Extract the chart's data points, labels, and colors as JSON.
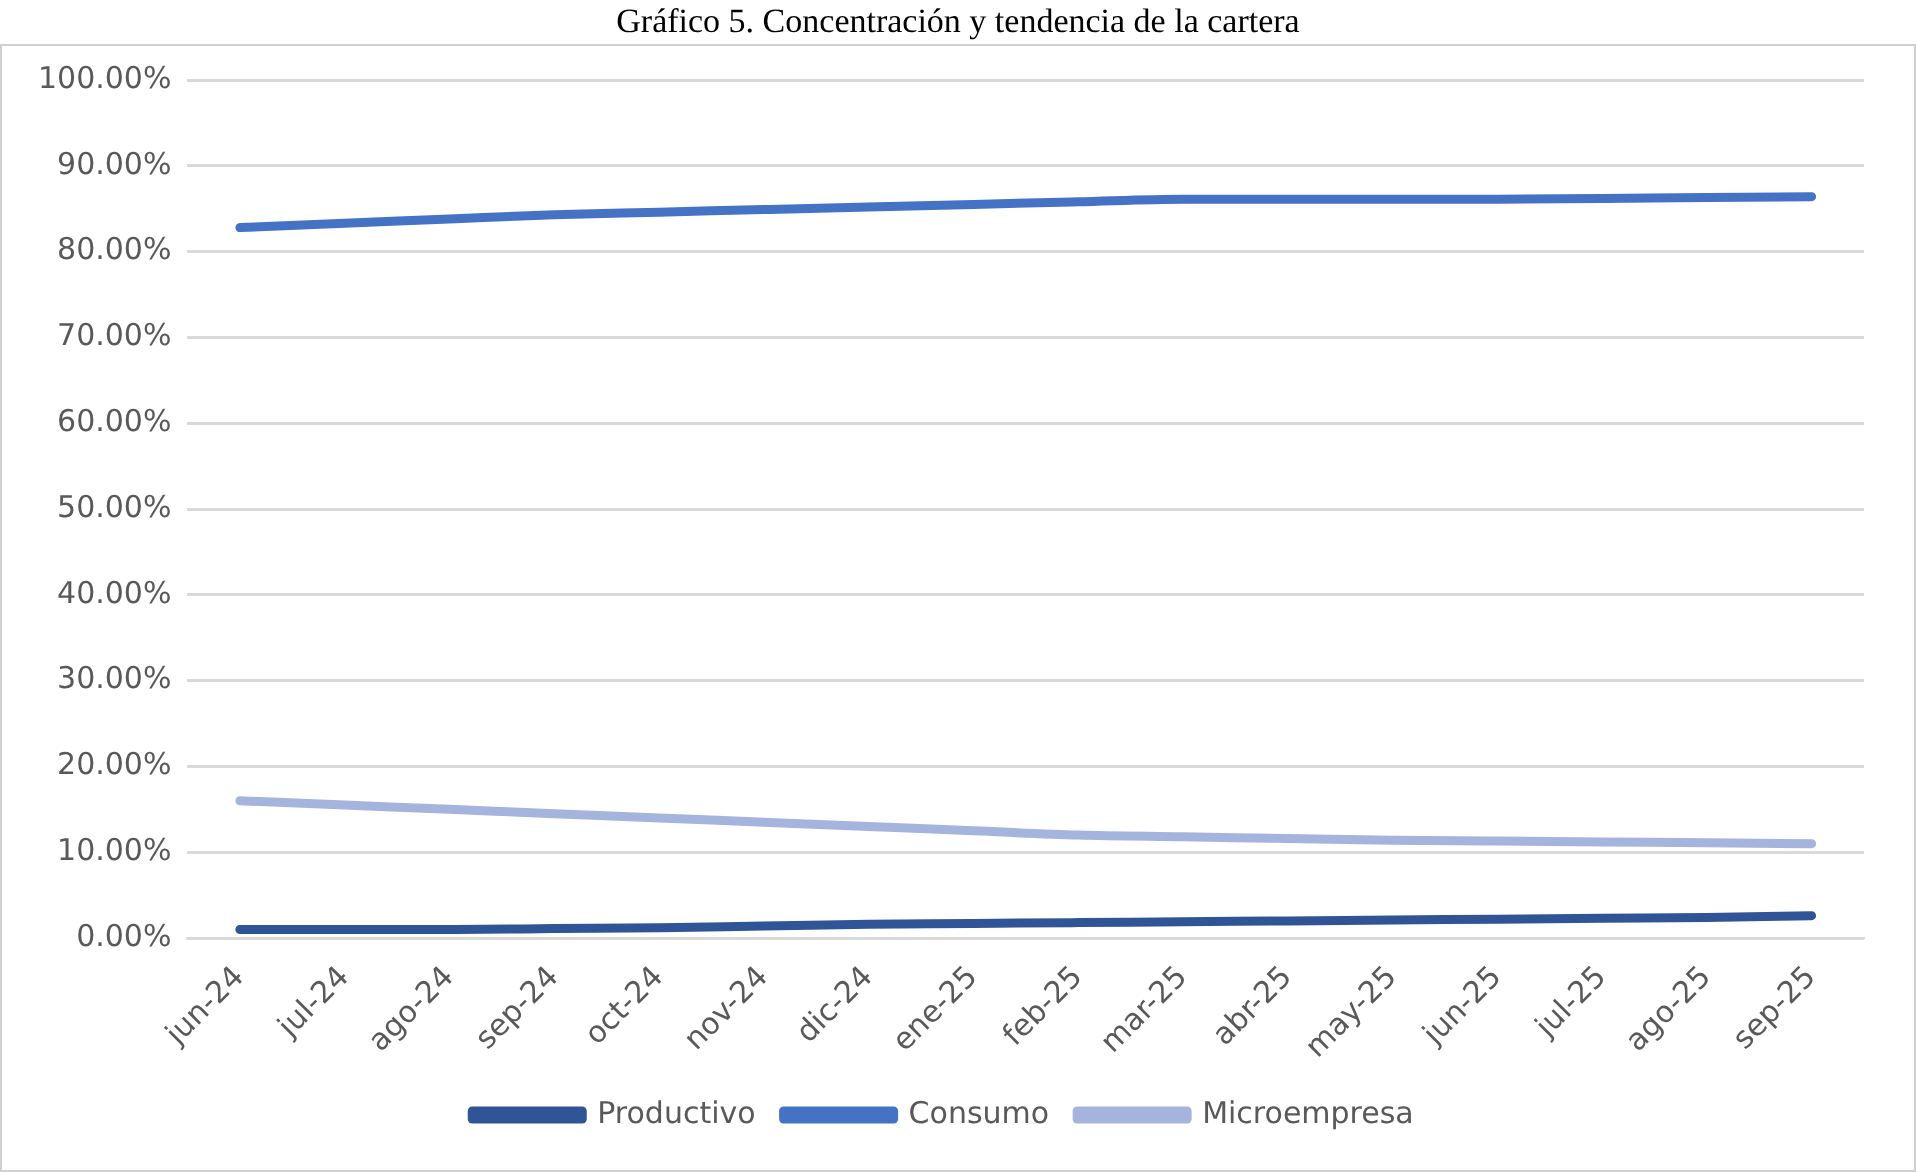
{
  "chart_data": {
    "type": "line",
    "title": "Gráfico 5. Concentración y tendencia de la cartera",
    "categories": [
      "jun-24",
      "jul-24",
      "ago-24",
      "sep-24",
      "oct-24",
      "nov-24",
      "dic-24",
      "ene-25",
      "feb-25",
      "mar-25",
      "abr-25",
      "may-25",
      "jun-25",
      "jul-25",
      "ago-25",
      "sep-25"
    ],
    "series": [
      {
        "name": "Productivo",
        "color": "#2f5597",
        "values": [
          1.0,
          1.0,
          1.0,
          1.1,
          1.2,
          1.4,
          1.6,
          1.7,
          1.8,
          1.9,
          2.0,
          2.1,
          2.2,
          2.3,
          2.4,
          2.6
        ]
      },
      {
        "name": "Consumo",
        "color": "#4472c4",
        "values": [
          82.8,
          83.3,
          83.8,
          84.3,
          84.6,
          84.9,
          85.2,
          85.5,
          85.8,
          86.1,
          86.1,
          86.1,
          86.1,
          86.2,
          86.3,
          86.4
        ]
      },
      {
        "name": "Microempresa",
        "color": "#a5b4dc",
        "values": [
          16.0,
          15.5,
          15.0,
          14.5,
          14.0,
          13.5,
          13.0,
          12.5,
          12.0,
          11.8,
          11.6,
          11.4,
          11.3,
          11.2,
          11.1,
          11.0
        ]
      }
    ],
    "ylim": [
      0,
      100
    ],
    "yticks": [
      {
        "value": 0,
        "label": "0.00%"
      },
      {
        "value": 10,
        "label": "10.00%"
      },
      {
        "value": 20,
        "label": "20.00%"
      },
      {
        "value": 30,
        "label": "30.00%"
      },
      {
        "value": 40,
        "label": "40.00%"
      },
      {
        "value": 50,
        "label": "50.00%"
      },
      {
        "value": 60,
        "label": "60.00%"
      },
      {
        "value": 70,
        "label": "70.00%"
      },
      {
        "value": 80,
        "label": "80.00%"
      },
      {
        "value": 90,
        "label": "90.00%"
      },
      {
        "value": 100,
        "label": "100.00%"
      }
    ],
    "grid": "y",
    "legend": "bottom",
    "marker": "none",
    "line_style": "solid"
  }
}
